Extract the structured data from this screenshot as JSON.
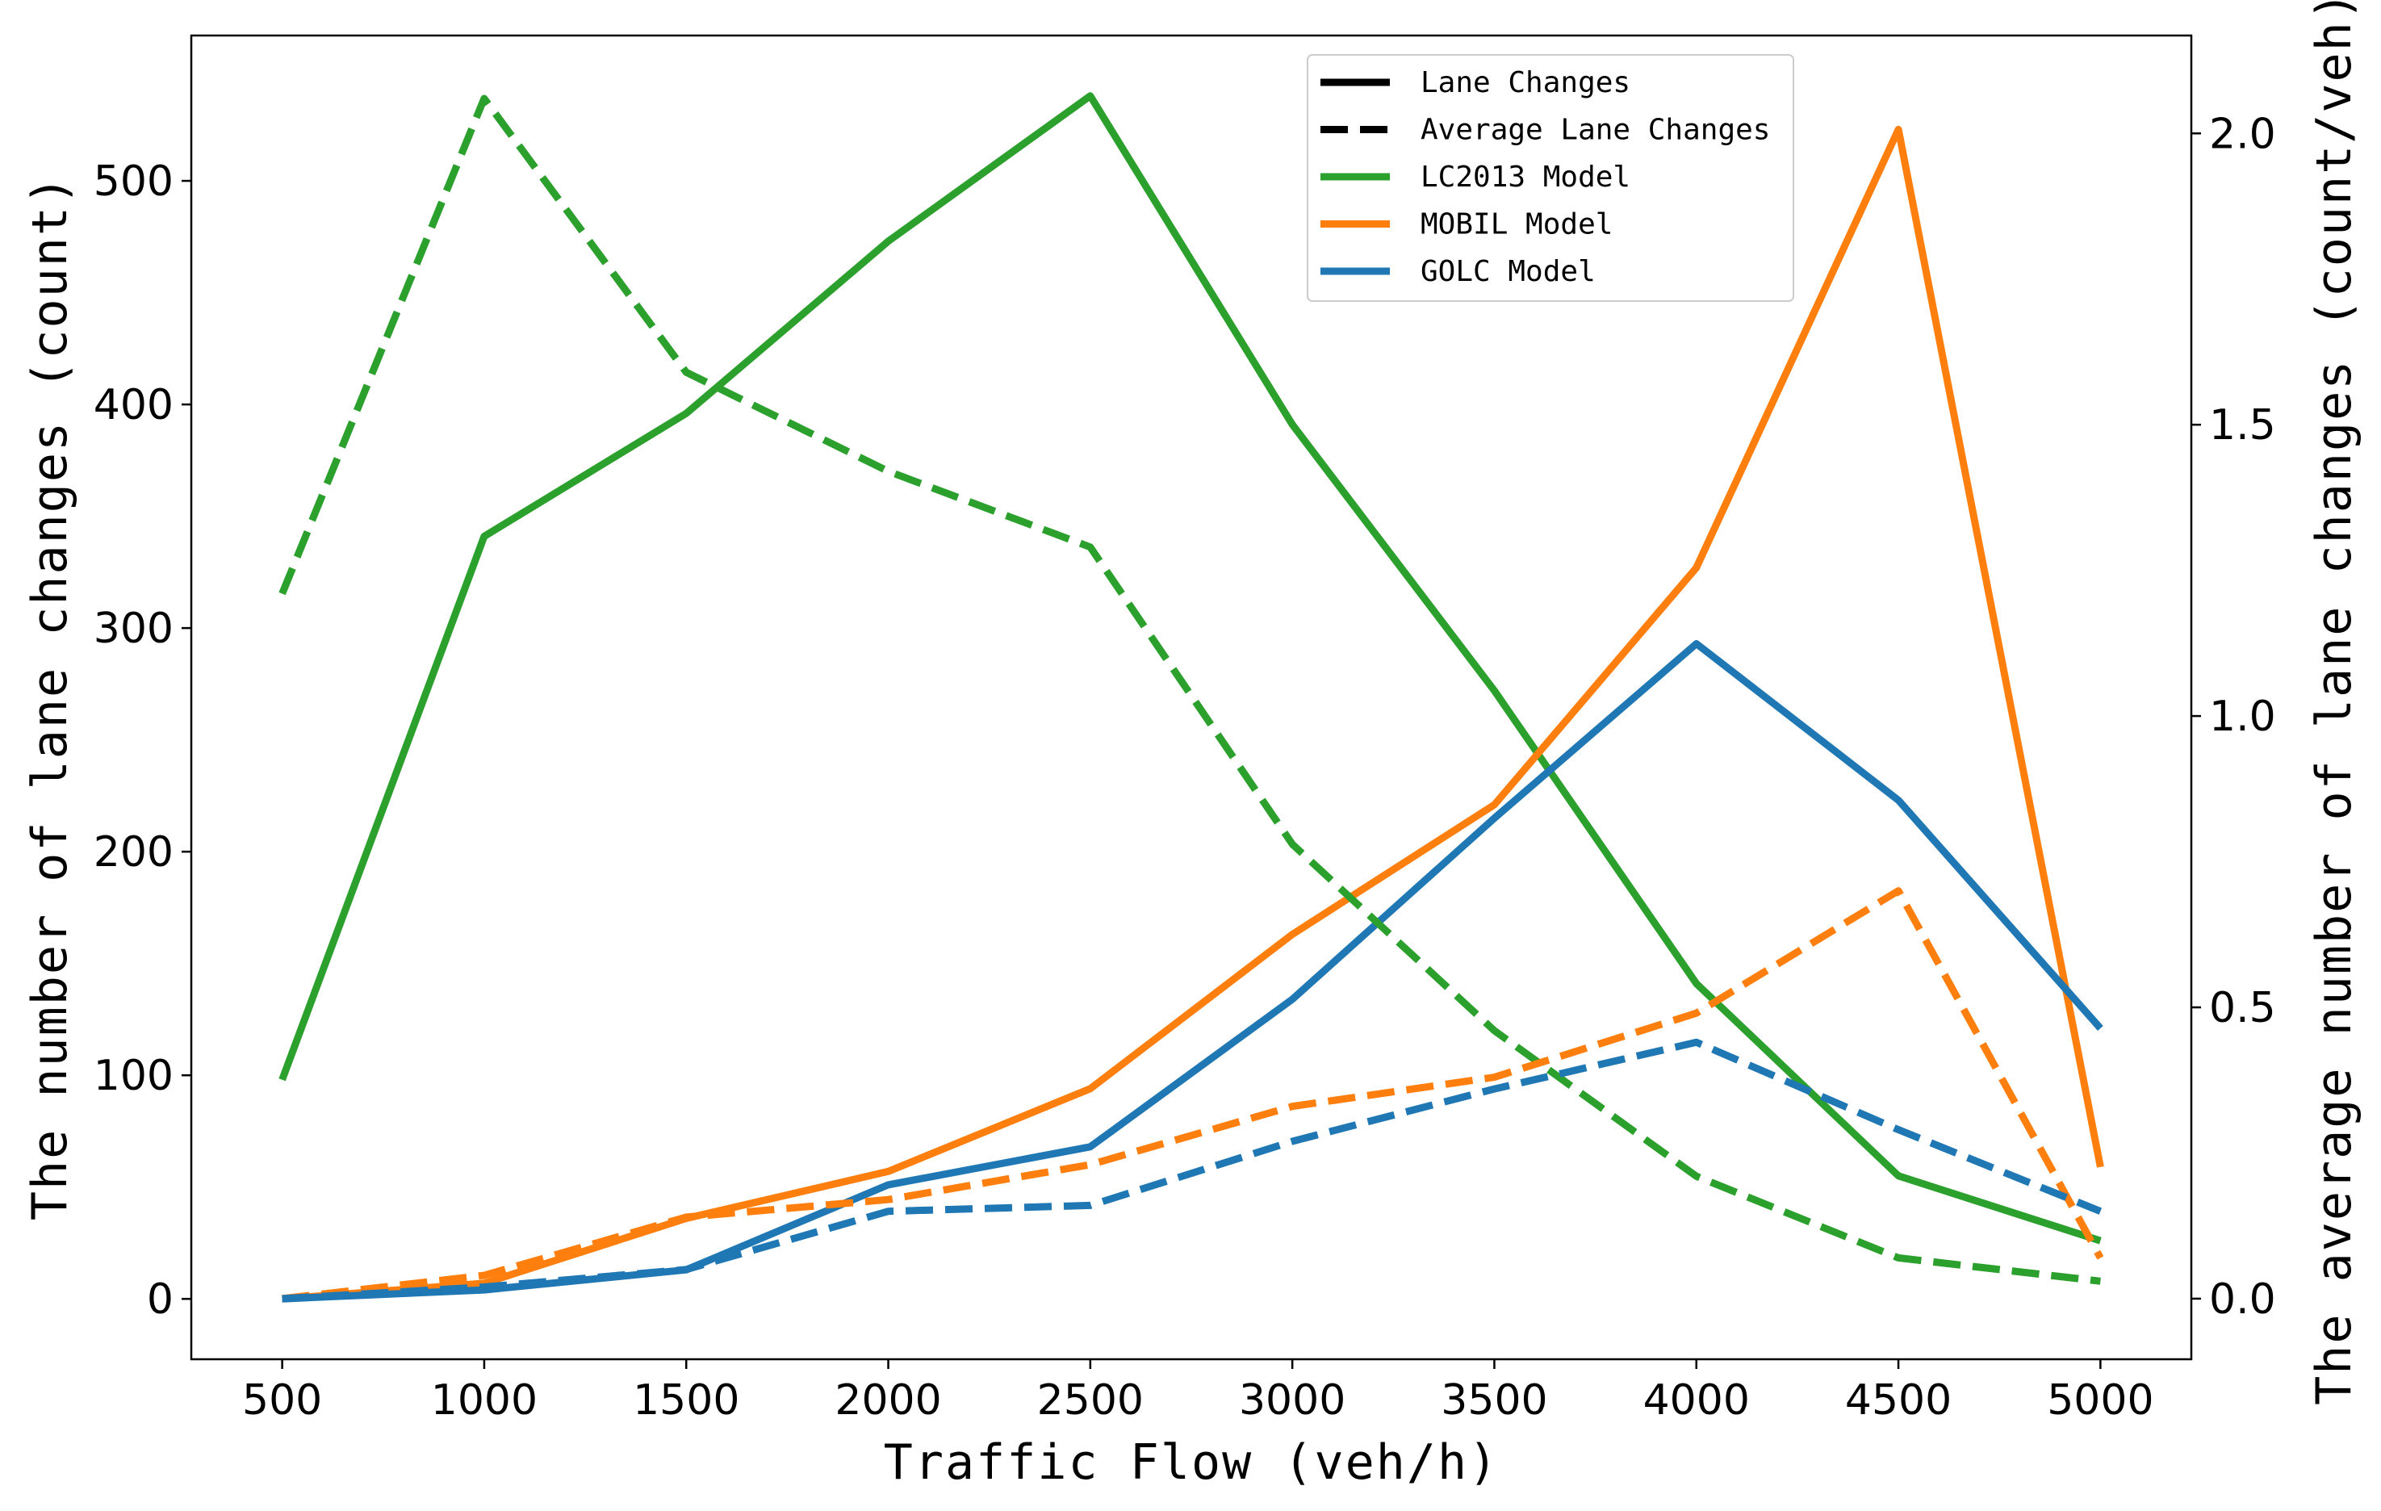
{
  "chart_data": {
    "type": "line",
    "x": [
      500,
      1000,
      1500,
      2000,
      2500,
      3000,
      3500,
      4000,
      4500,
      5000
    ],
    "x_ticks": [
      "500",
      "1000",
      "1500",
      "2000",
      "2500",
      "3000",
      "3500",
      "4000",
      "4500",
      "5000"
    ],
    "xlabel": "Traffic Flow (veh/h)",
    "ylabel_left": "The number of lane changes (count)",
    "ylabel_right": "The average number of lane changes (count/veh)",
    "ylim_left": [
      -27,
      565
    ],
    "ylim_right": [
      -0.104,
      2.168
    ],
    "yticks_left": [
      "0",
      "100",
      "200",
      "300",
      "400",
      "500"
    ],
    "yticks_right": [
      "0.0",
      "0.5",
      "1.0",
      "1.5",
      "2.0"
    ],
    "legend_position": "top-center",
    "legend": [
      {
        "label": "Lane Changes",
        "color": "#000000",
        "style": "solid"
      },
      {
        "label": "Average Lane Changes",
        "color": "#000000",
        "style": "dashed"
      },
      {
        "label": "LC2013 Model",
        "color": "#2ca02c",
        "style": "solid"
      },
      {
        "label": "MOBIL Model",
        "color": "#ff7f0e",
        "style": "solid"
      },
      {
        "label": "GOLC Model",
        "color": "#1f77b4",
        "style": "solid"
      }
    ],
    "series": [
      {
        "name": "LC2013 Model - Lane Changes",
        "axis": "left",
        "style": "solid",
        "color": "#2ca02c",
        "values": [
          98,
          341,
          396,
          473,
          538,
          391,
          272,
          141,
          55,
          26
        ]
      },
      {
        "name": "MOBIL Model - Lane Changes",
        "axis": "left",
        "style": "solid",
        "color": "#ff7f0e",
        "values": [
          0,
          7,
          36,
          57,
          94,
          163,
          221,
          327,
          523,
          59
        ]
      },
      {
        "name": "GOLC Model - Lane Changes",
        "axis": "left",
        "style": "solid",
        "color": "#1f77b4",
        "values": [
          0,
          4,
          13,
          51,
          68,
          134,
          215,
          293,
          223,
          121
        ]
      },
      {
        "name": "LC2013 Model - Average Lane Changes",
        "axis": "right",
        "style": "dashed",
        "color": "#2ca02c",
        "values": [
          1.21,
          2.06,
          1.59,
          1.42,
          1.29,
          0.78,
          0.46,
          0.21,
          0.07,
          0.03
        ]
      },
      {
        "name": "MOBIL Model - Average Lane Changes",
        "axis": "right",
        "style": "dashed",
        "color": "#ff7f0e",
        "values": [
          0.0,
          0.04,
          0.14,
          0.17,
          0.23,
          0.33,
          0.38,
          0.49,
          0.7,
          0.07
        ]
      },
      {
        "name": "GOLC Model - Average Lane Changes",
        "axis": "right",
        "style": "dashed",
        "color": "#1f77b4",
        "values": [
          0.0,
          0.02,
          0.05,
          0.15,
          0.16,
          0.27,
          0.36,
          0.44,
          0.29,
          0.15
        ]
      }
    ]
  }
}
